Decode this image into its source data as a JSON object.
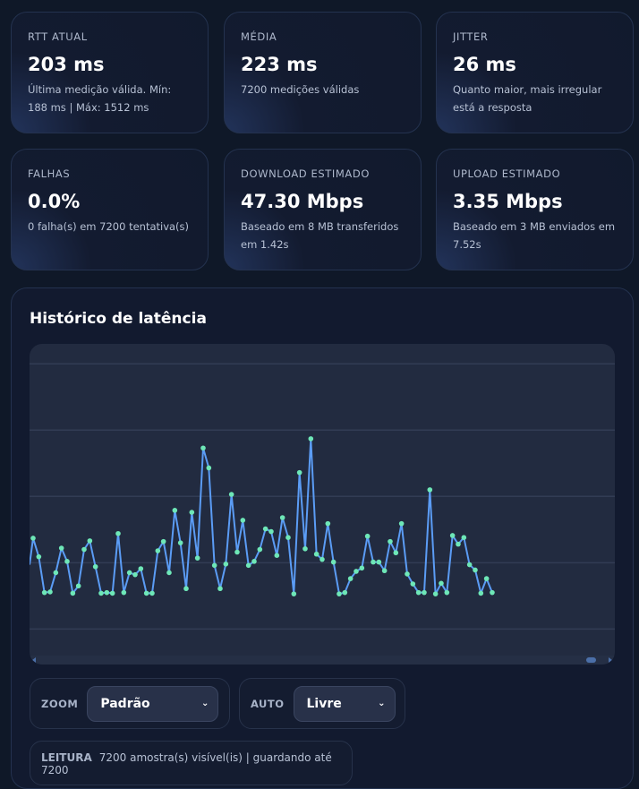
{
  "cards": [
    {
      "label": "RTT ATUAL",
      "value": "203 ms",
      "sub": "Última medição válida. Mín: 188 ms | Máx: 1512 ms"
    },
    {
      "label": "MÉDIA",
      "value": "223 ms",
      "sub": "7200 medições válidas"
    },
    {
      "label": "JITTER",
      "value": "26 ms",
      "sub": "Quanto maior, mais irregular está a resposta"
    },
    {
      "label": "FALHAS",
      "value": "0.0%",
      "sub": "0 falha(s) em 7200 tentativa(s)"
    },
    {
      "label": "DOWNLOAD ESTIMADO",
      "value": "47.30 Mbps",
      "sub": "Baseado em 8 MB transferidos em 1.42s"
    },
    {
      "label": "UPLOAD ESTIMADO",
      "value": "3.35 Mbps",
      "sub": "Baseado em 3 MB enviados em 7.52s"
    }
  ],
  "history": {
    "title": "Histórico de latência"
  },
  "controls": {
    "zoom_label": "ZOOM",
    "zoom_value": "Padrão",
    "auto_label": "AUTO",
    "auto_value": "Livre"
  },
  "reading": {
    "label": "LEITURA",
    "text": "7200 amostra(s) visível(is) | guardando até 7200"
  },
  "colors": {
    "line": "#5b9cf5",
    "point": "#6ee7b7"
  },
  "chart_data": {
    "type": "line",
    "grid": true,
    "ylim": [
      110,
      580
    ],
    "values": [
      287,
      259,
      205,
      206,
      235,
      272,
      252,
      204,
      215,
      270,
      283,
      244,
      204,
      205,
      204,
      294,
      205,
      235,
      232,
      241,
      204,
      204,
      268,
      282,
      235,
      329,
      280,
      211,
      326,
      257,
      423,
      393,
      246,
      211,
      248,
      353,
      266,
      314,
      246,
      252,
      270,
      301,
      297,
      261,
      318,
      288,
      203,
      386,
      271,
      437,
      263,
      255,
      309,
      251,
      203,
      205,
      226,
      237,
      242,
      290,
      251,
      251,
      238,
      282,
      265,
      309,
      233,
      218,
      205,
      205,
      360,
      203,
      219,
      205,
      291,
      278,
      288,
      247,
      239,
      204,
      226,
      205
    ]
  }
}
